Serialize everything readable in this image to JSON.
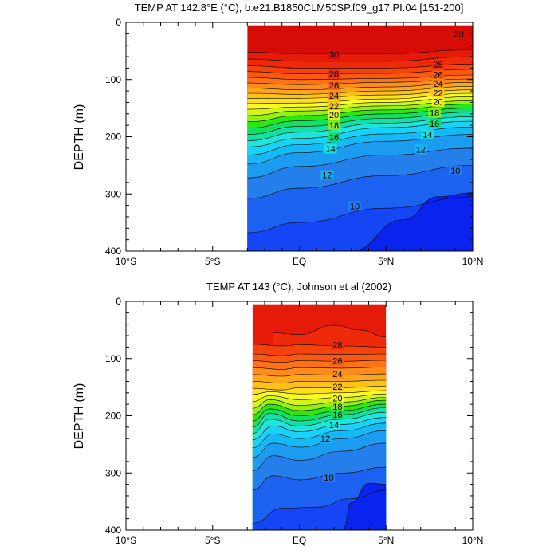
{
  "chart_data": [
    {
      "type": "contour",
      "title": "TEMP AT 142.8°E (°C), b.e21.B1850CLM50SP.f09_g17.PI.04 [151-200]",
      "ylabel": "DEPTH (m)",
      "xlim": [
        -10,
        10
      ],
      "ylim": [
        400,
        0
      ],
      "y_reversed": true,
      "xticks": [
        {
          "value": -10,
          "label": "10°S"
        },
        {
          "value": -5,
          "label": "5°S"
        },
        {
          "value": 0,
          "label": "EQ"
        },
        {
          "value": 5,
          "label": "5°N"
        },
        {
          "value": 10,
          "label": "10°N"
        }
      ],
      "yticks": [
        0,
        100,
        200,
        300,
        400
      ],
      "data_extent_x": [
        -3,
        10
      ],
      "isotherms": [
        {
          "level": 30,
          "x": [
            -3,
            0,
            5,
            10
          ],
          "depth": [
            52,
            55,
            55,
            48
          ]
        },
        {
          "level": 29,
          "x": [
            -3,
            0,
            5,
            10
          ],
          "depth": [
            64,
            68,
            68,
            60
          ]
        },
        {
          "level": 28,
          "x": [
            -3,
            0,
            5,
            10
          ],
          "depth": [
            76,
            80,
            80,
            73
          ]
        },
        {
          "level": 27,
          "x": [
            -3,
            0,
            5,
            10
          ],
          "depth": [
            86,
            90,
            89,
            82
          ]
        },
        {
          "level": 26,
          "x": [
            -3,
            0,
            5,
            10
          ],
          "depth": [
            96,
            100,
            98,
            92
          ]
        },
        {
          "level": 25,
          "x": [
            -3,
            0,
            5,
            10
          ],
          "depth": [
            106,
            109,
            105,
            99
          ]
        },
        {
          "level": 24,
          "x": [
            -3,
            0,
            5,
            10
          ],
          "depth": [
            115,
            118,
            113,
            105
          ]
        },
        {
          "level": 23,
          "x": [
            -3,
            0,
            5,
            10
          ],
          "depth": [
            124,
            126,
            120,
            112
          ]
        },
        {
          "level": 22,
          "x": [
            -3,
            0,
            5,
            10
          ],
          "depth": [
            133,
            133,
            127,
            118
          ]
        },
        {
          "level": 21,
          "x": [
            -3,
            0,
            5,
            10
          ],
          "depth": [
            142,
            141,
            134,
            124
          ]
        },
        {
          "level": 20,
          "x": [
            -3,
            0,
            5,
            10
          ],
          "depth": [
            152,
            148,
            140,
            130
          ]
        },
        {
          "level": 19,
          "x": [
            -3,
            0,
            5,
            10
          ],
          "depth": [
            163,
            155,
            146,
            137
          ]
        },
        {
          "level": 18,
          "x": [
            -3,
            0,
            5,
            10
          ],
          "depth": [
            174,
            163,
            153,
            143
          ]
        },
        {
          "level": 17,
          "x": [
            -3,
            0,
            5,
            10
          ],
          "depth": [
            185,
            172,
            160,
            150
          ]
        },
        {
          "level": 16,
          "x": [
            -3,
            0,
            5,
            10
          ],
          "depth": [
            196,
            182,
            168,
            157
          ]
        },
        {
          "level": 15,
          "x": [
            -3,
            0,
            5,
            10
          ],
          "depth": [
            207,
            192,
            176,
            165
          ]
        },
        {
          "level": 14,
          "x": [
            -3,
            0,
            5,
            10
          ],
          "depth": [
            218,
            203,
            184,
            173
          ]
        },
        {
          "level": 13,
          "x": [
            -3,
            0,
            5,
            10
          ],
          "depth": [
            232,
            214,
            195,
            183
          ]
        },
        {
          "level": 12,
          "x": [
            -3,
            0,
            5,
            10
          ],
          "depth": [
            248,
            228,
            208,
            196
          ]
        },
        {
          "level": 11,
          "x": [
            -3,
            0,
            5,
            10
          ],
          "depth": [
            272,
            252,
            232,
            220
          ]
        },
        {
          "level": 10,
          "x": [
            -3,
            0,
            5,
            10
          ],
          "depth": [
            308,
            290,
            268,
            250
          ]
        },
        {
          "level": 9,
          "x": [
            -3,
            0,
            5,
            10
          ],
          "depth": [
            368,
            350,
            325,
            305
          ]
        },
        {
          "level": 8,
          "x": [
            3,
            6,
            8,
            10
          ],
          "depth": [
            400,
            345,
            305,
            298
          ]
        }
      ],
      "contour_labels": [
        {
          "text": "30",
          "x": 9.2,
          "depth": 20
        },
        {
          "text": "30",
          "x": 2,
          "depth": 56
        },
        {
          "text": "28",
          "x": 2,
          "depth": 90
        },
        {
          "text": "28",
          "x": 8,
          "depth": 73
        },
        {
          "text": "26",
          "x": 2,
          "depth": 110
        },
        {
          "text": "26",
          "x": 8,
          "depth": 91
        },
        {
          "text": "24",
          "x": 2,
          "depth": 128
        },
        {
          "text": "24",
          "x": 8,
          "depth": 107
        },
        {
          "text": "22",
          "x": 2,
          "depth": 146
        },
        {
          "text": "22",
          "x": 8,
          "depth": 123
        },
        {
          "text": "20",
          "x": 2,
          "depth": 162
        },
        {
          "text": "20",
          "x": 8,
          "depth": 139
        },
        {
          "text": "18",
          "x": 2,
          "depth": 180
        },
        {
          "text": "18",
          "x": 7.8,
          "depth": 158
        },
        {
          "text": "16",
          "x": 2,
          "depth": 201
        },
        {
          "text": "16",
          "x": 7.8,
          "depth": 177
        },
        {
          "text": "14",
          "x": 1.8,
          "depth": 221
        },
        {
          "text": "14",
          "x": 7.4,
          "depth": 196
        },
        {
          "text": "12",
          "x": 1.6,
          "depth": 267
        },
        {
          "text": "12",
          "x": 7,
          "depth": 222
        },
        {
          "text": "10",
          "x": 3.2,
          "depth": 321
        },
        {
          "text": "10",
          "x": 9,
          "depth": 259
        }
      ]
    },
    {
      "type": "contour",
      "title": "TEMP AT 143 (°C), Johnson et al (2002)",
      "ylabel": "DEPTH (m)",
      "xlim": [
        -10,
        10
      ],
      "ylim": [
        400,
        0
      ],
      "y_reversed": true,
      "xticks": [
        {
          "value": -10,
          "label": "10°S"
        },
        {
          "value": -5,
          "label": "5°S"
        },
        {
          "value": 0,
          "label": "EQ"
        },
        {
          "value": 5,
          "label": "5°N"
        },
        {
          "value": 10,
          "label": "10°N"
        }
      ],
      "yticks": [
        0,
        100,
        200,
        300,
        400
      ],
      "data_extent_x": [
        -2.7,
        5
      ],
      "isotherms": [
        {
          "level": 29,
          "x": [
            -1.5,
            0,
            2,
            3.5,
            5
          ],
          "depth": [
            55,
            58,
            42,
            50,
            62
          ]
        },
        {
          "level": 28,
          "x": [
            -2.7,
            -1,
            0,
            2.5,
            5
          ],
          "depth": [
            75,
            78,
            76,
            78,
            80
          ]
        },
        {
          "level": 27,
          "x": [
            -2.7,
            -1,
            0,
            2.5,
            5
          ],
          "depth": [
            92,
            95,
            92,
            93,
            92
          ]
        },
        {
          "level": 26,
          "x": [
            -2.7,
            -1,
            0,
            2.5,
            5
          ],
          "depth": [
            104,
            107,
            104,
            105,
            103
          ]
        },
        {
          "level": 25,
          "x": [
            -2.7,
            -1,
            0,
            2.5,
            5
          ],
          "depth": [
            116,
            119,
            116,
            117,
            115
          ]
        },
        {
          "level": 24,
          "x": [
            -2.7,
            -1,
            0,
            2.5,
            5
          ],
          "depth": [
            128,
            131,
            128,
            129,
            127
          ]
        },
        {
          "level": 23,
          "x": [
            -2.7,
            -1,
            0,
            2.5,
            5
          ],
          "depth": [
            140,
            143,
            140,
            140,
            138
          ]
        },
        {
          "level": 22,
          "x": [
            -2.7,
            -1,
            0,
            2.5,
            5
          ],
          "depth": [
            152,
            155,
            151,
            151,
            148
          ]
        },
        {
          "level": 21,
          "x": [
            -2.7,
            -1.7,
            0,
            2.5,
            5
          ],
          "depth": [
            163,
            158,
            162,
            160,
            156
          ]
        },
        {
          "level": 20,
          "x": [
            -2.7,
            -1.7,
            0,
            2.5,
            5
          ],
          "depth": [
            175,
            165,
            172,
            168,
            162
          ]
        },
        {
          "level": 19,
          "x": [
            -2.7,
            -1.7,
            0,
            2.5,
            5
          ],
          "depth": [
            187,
            172,
            182,
            176,
            168
          ]
        },
        {
          "level": 18,
          "x": [
            -2.7,
            -1.7,
            0,
            2.5,
            5
          ],
          "depth": [
            198,
            180,
            191,
            183,
            173
          ]
        },
        {
          "level": 17,
          "x": [
            -2.7,
            -1.7,
            0,
            2.5,
            5
          ],
          "depth": [
            209,
            188,
            200,
            191,
            180
          ]
        },
        {
          "level": 16,
          "x": [
            -2.7,
            -1.7,
            0,
            2.5,
            5
          ],
          "depth": [
            220,
            196,
            209,
            198,
            186
          ]
        },
        {
          "level": 15,
          "x": [
            -2.7,
            -1.7,
            0,
            2.5,
            5
          ],
          "depth": [
            231,
            206,
            218,
            206,
            194
          ]
        },
        {
          "level": 14,
          "x": [
            -2.7,
            -1.5,
            0,
            2.5,
            5
          ],
          "depth": [
            242,
            218,
            228,
            215,
            203
          ]
        },
        {
          "level": 13,
          "x": [
            -2.7,
            -1.5,
            0,
            2.5,
            5
          ],
          "depth": [
            256,
            232,
            240,
            226,
            213
          ]
        },
        {
          "level": 12,
          "x": [
            -2.7,
            -1.5,
            0,
            2.5,
            5
          ],
          "depth": [
            273,
            248,
            255,
            240,
            226
          ]
        },
        {
          "level": 11,
          "x": [
            -2.7,
            -1.5,
            0,
            2.5,
            5
          ],
          "depth": [
            296,
            270,
            278,
            262,
            248
          ]
        },
        {
          "level": 10,
          "x": [
            -2.7,
            -1.5,
            0,
            2.5,
            5
          ],
          "depth": [
            330,
            305,
            312,
            300,
            290
          ]
        },
        {
          "level": 9,
          "x": [
            -2.7,
            -1,
            1,
            3,
            5
          ],
          "depth": [
            388,
            362,
            360,
            345,
            330
          ]
        },
        {
          "level": 8,
          "x": [
            2.5,
            3,
            4,
            5
          ],
          "depth": [
            400,
            352,
            318,
            320
          ]
        }
      ],
      "contour_labels": [
        {
          "text": "28",
          "x": 2.2,
          "depth": 76
        },
        {
          "text": "26",
          "x": 2.2,
          "depth": 104
        },
        {
          "text": "24",
          "x": 2.2,
          "depth": 127
        },
        {
          "text": "22",
          "x": 2.2,
          "depth": 149
        },
        {
          "text": "20",
          "x": 2.2,
          "depth": 169
        },
        {
          "text": "18",
          "x": 2.2,
          "depth": 184
        },
        {
          "text": "16",
          "x": 2.2,
          "depth": 198
        },
        {
          "text": "14",
          "x": 2,
          "depth": 216
        },
        {
          "text": "12",
          "x": 1.5,
          "depth": 240
        },
        {
          "text": "10",
          "x": 1.7,
          "depth": 308
        }
      ]
    }
  ]
}
